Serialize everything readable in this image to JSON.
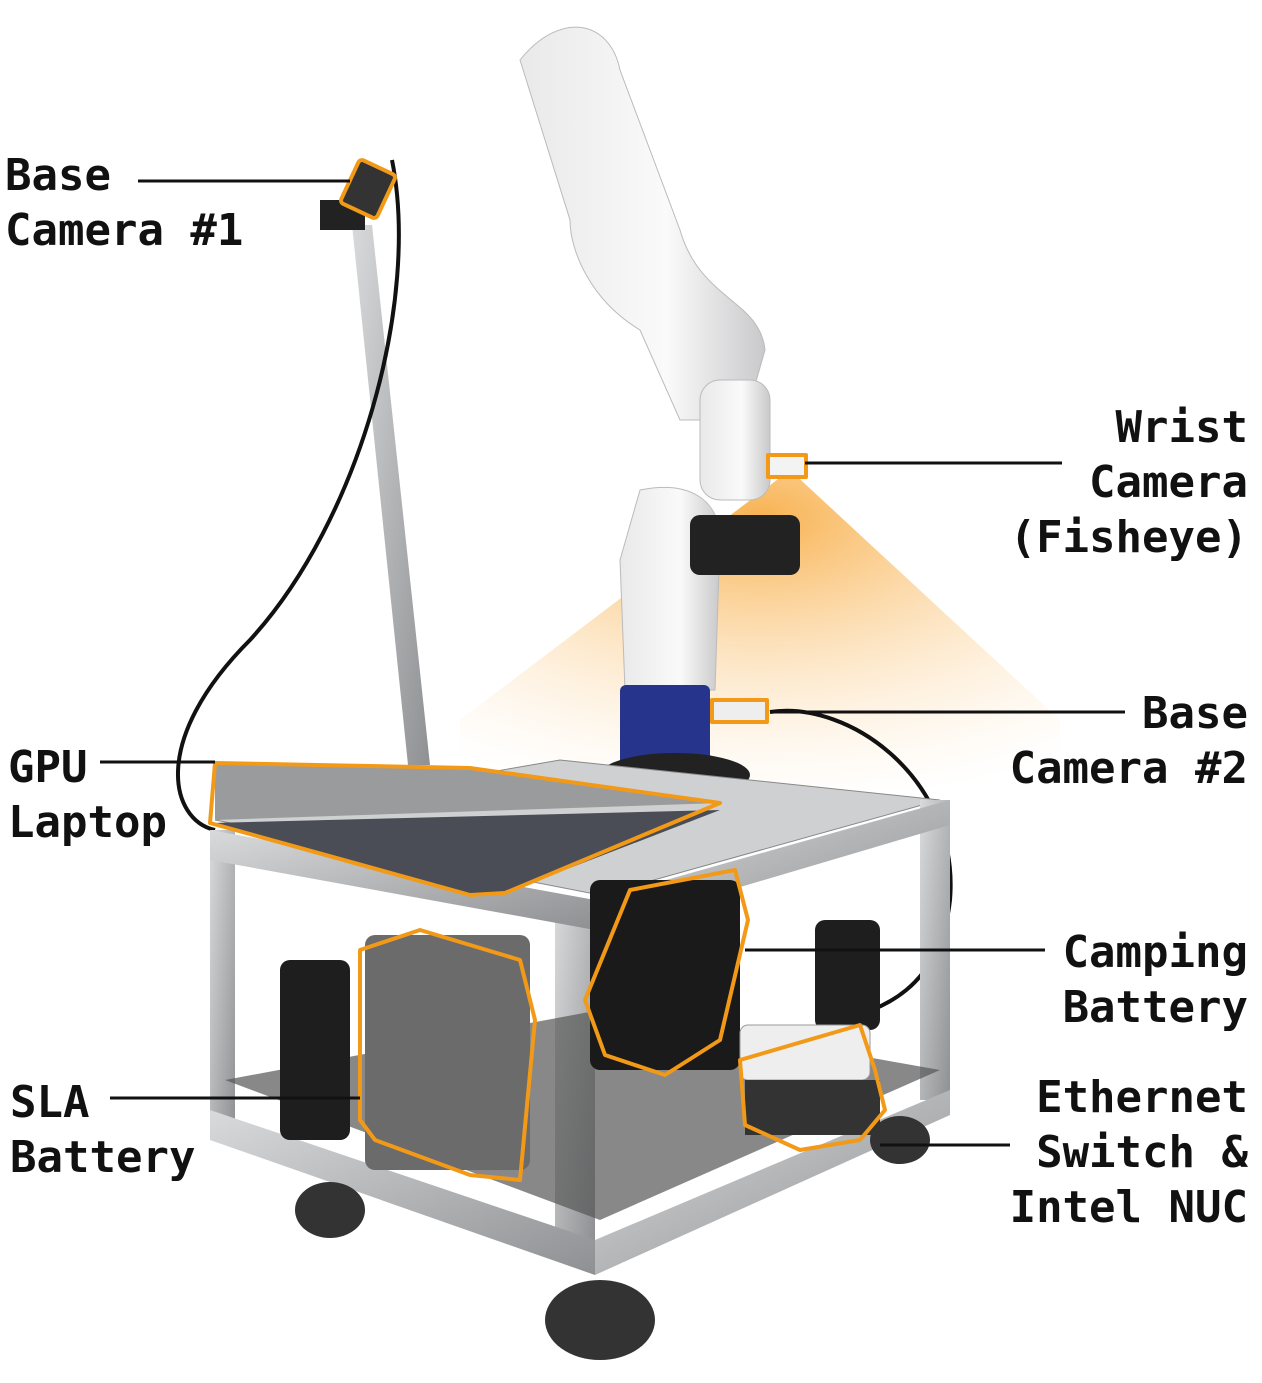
{
  "labels": [
    {
      "lines": [
        "Base",
        "Camera #1"
      ]
    },
    {
      "lines": [
        "Wrist",
        "Camera",
        "(Fisheye)"
      ]
    },
    {
      "lines": [
        "Base",
        "Camera #2"
      ]
    },
    {
      "lines": [
        "GPU",
        "Laptop"
      ]
    },
    {
      "lines": [
        "Camping",
        "Battery"
      ]
    },
    {
      "lines": [
        "SLA",
        "Battery"
      ]
    },
    {
      "lines": [
        "Ethernet",
        "Switch &",
        "Intel NUC"
      ]
    }
  ]
}
